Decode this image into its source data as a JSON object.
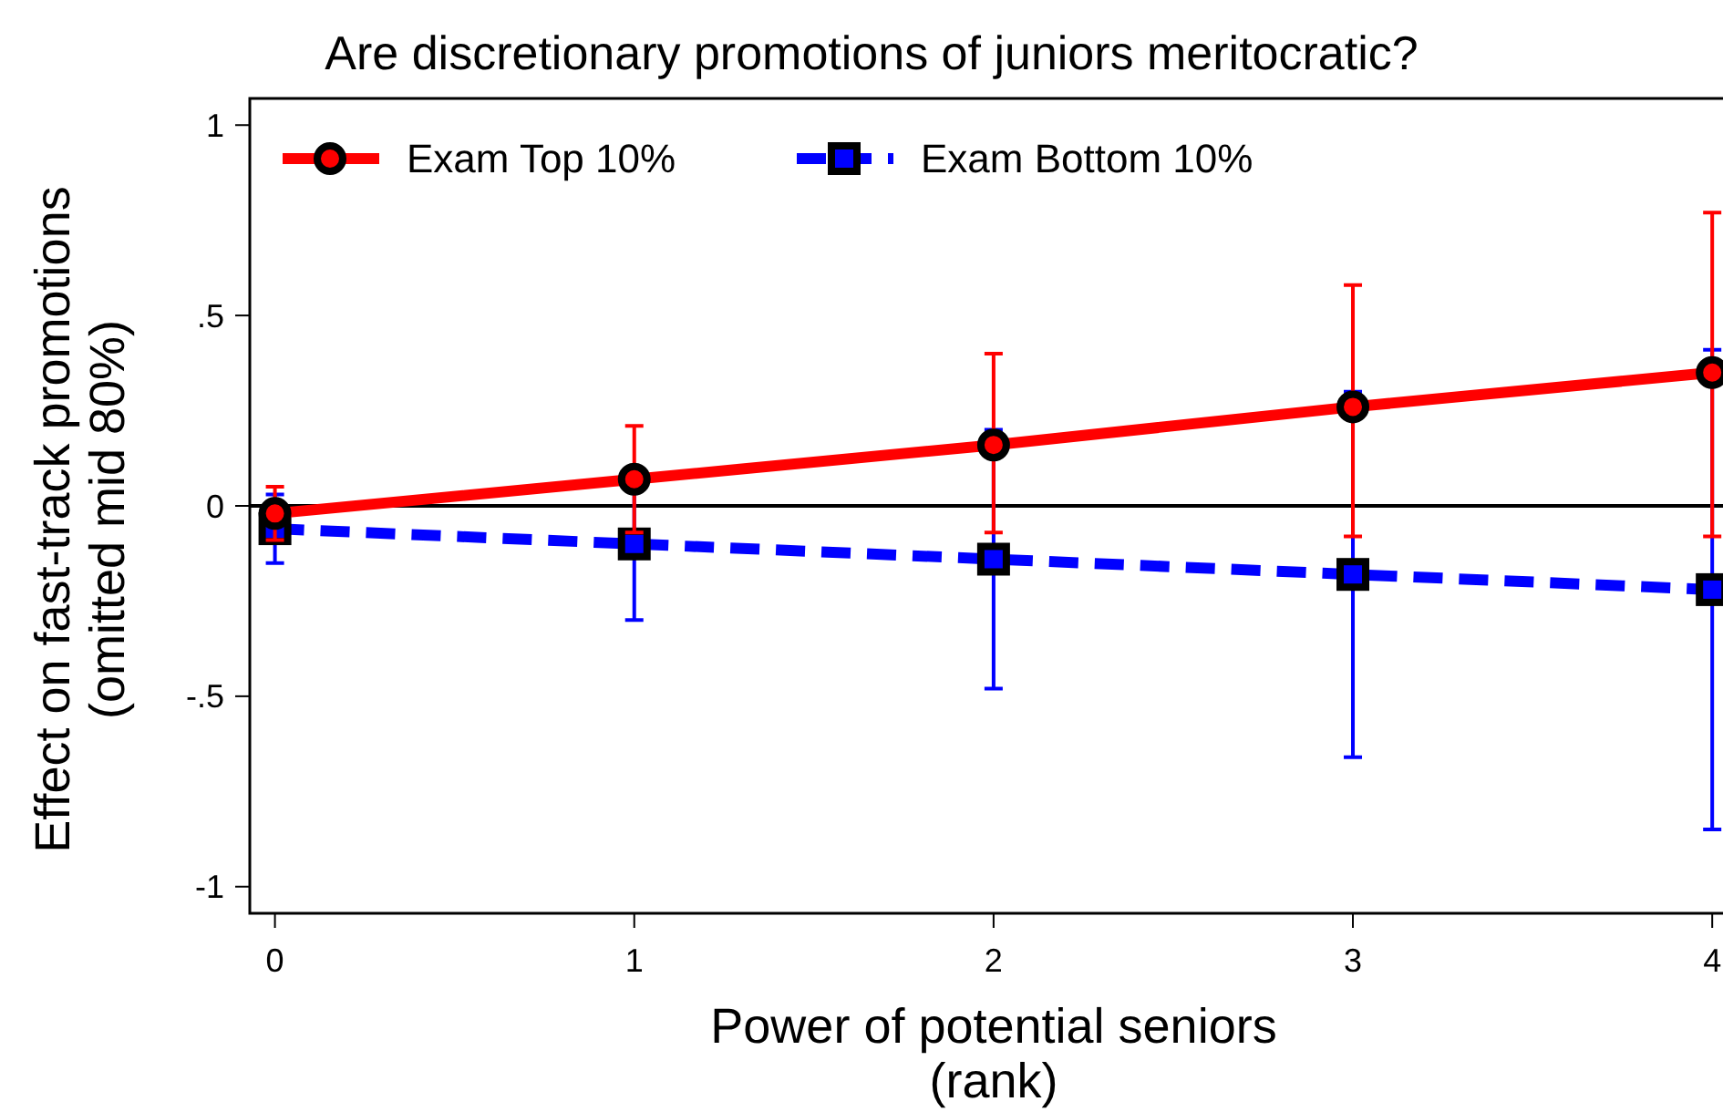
{
  "chart_data": {
    "type": "line",
    "title": "Are discretionary promotions of juniors meritocratic?",
    "xlabel": "Power of potential seniors\n(rank)",
    "ylabel": "Effect on fast-track promotions\n(omitted mid 80%)",
    "x": [
      0,
      1,
      2,
      3,
      4
    ],
    "series": [
      {
        "name": "Exam Top 10%",
        "color": "#ff0000",
        "marker": "circle",
        "line_style": "solid",
        "values": [
          -0.02,
          0.07,
          0.16,
          0.26,
          0.35
        ],
        "errors": [
          [
            -0.09,
            0.05
          ],
          [
            -0.07,
            0.21
          ],
          [
            -0.07,
            0.4
          ],
          [
            -0.08,
            0.58
          ],
          [
            -0.08,
            0.77
          ]
        ]
      },
      {
        "name": "Exam Bottom 10%",
        "color": "#0000ff",
        "marker": "square",
        "line_style": "dashed",
        "values": [
          -0.06,
          -0.1,
          -0.14,
          -0.18,
          -0.22
        ],
        "errors": [
          [
            -0.15,
            0.03
          ],
          [
            -0.3,
            0.1
          ],
          [
            -0.48,
            0.2
          ],
          [
            -0.66,
            0.3
          ],
          [
            -0.85,
            0.41
          ]
        ]
      }
    ],
    "xlim": [
      -0.07,
      4.03
    ],
    "ylim": [
      -1.07,
      1.07
    ],
    "xticks": [
      0,
      1,
      2,
      3,
      4
    ],
    "yticks": [
      {
        "value": -1,
        "label": "-1"
      },
      {
        "value": -0.5,
        "label": "-.5"
      },
      0,
      {
        "value": 0.5,
        "label": ".5"
      },
      1
    ],
    "ref_lines": [
      {
        "axis": "y",
        "value": 0,
        "color": "#000000"
      }
    ],
    "legend": "top left",
    "grid": false
  }
}
